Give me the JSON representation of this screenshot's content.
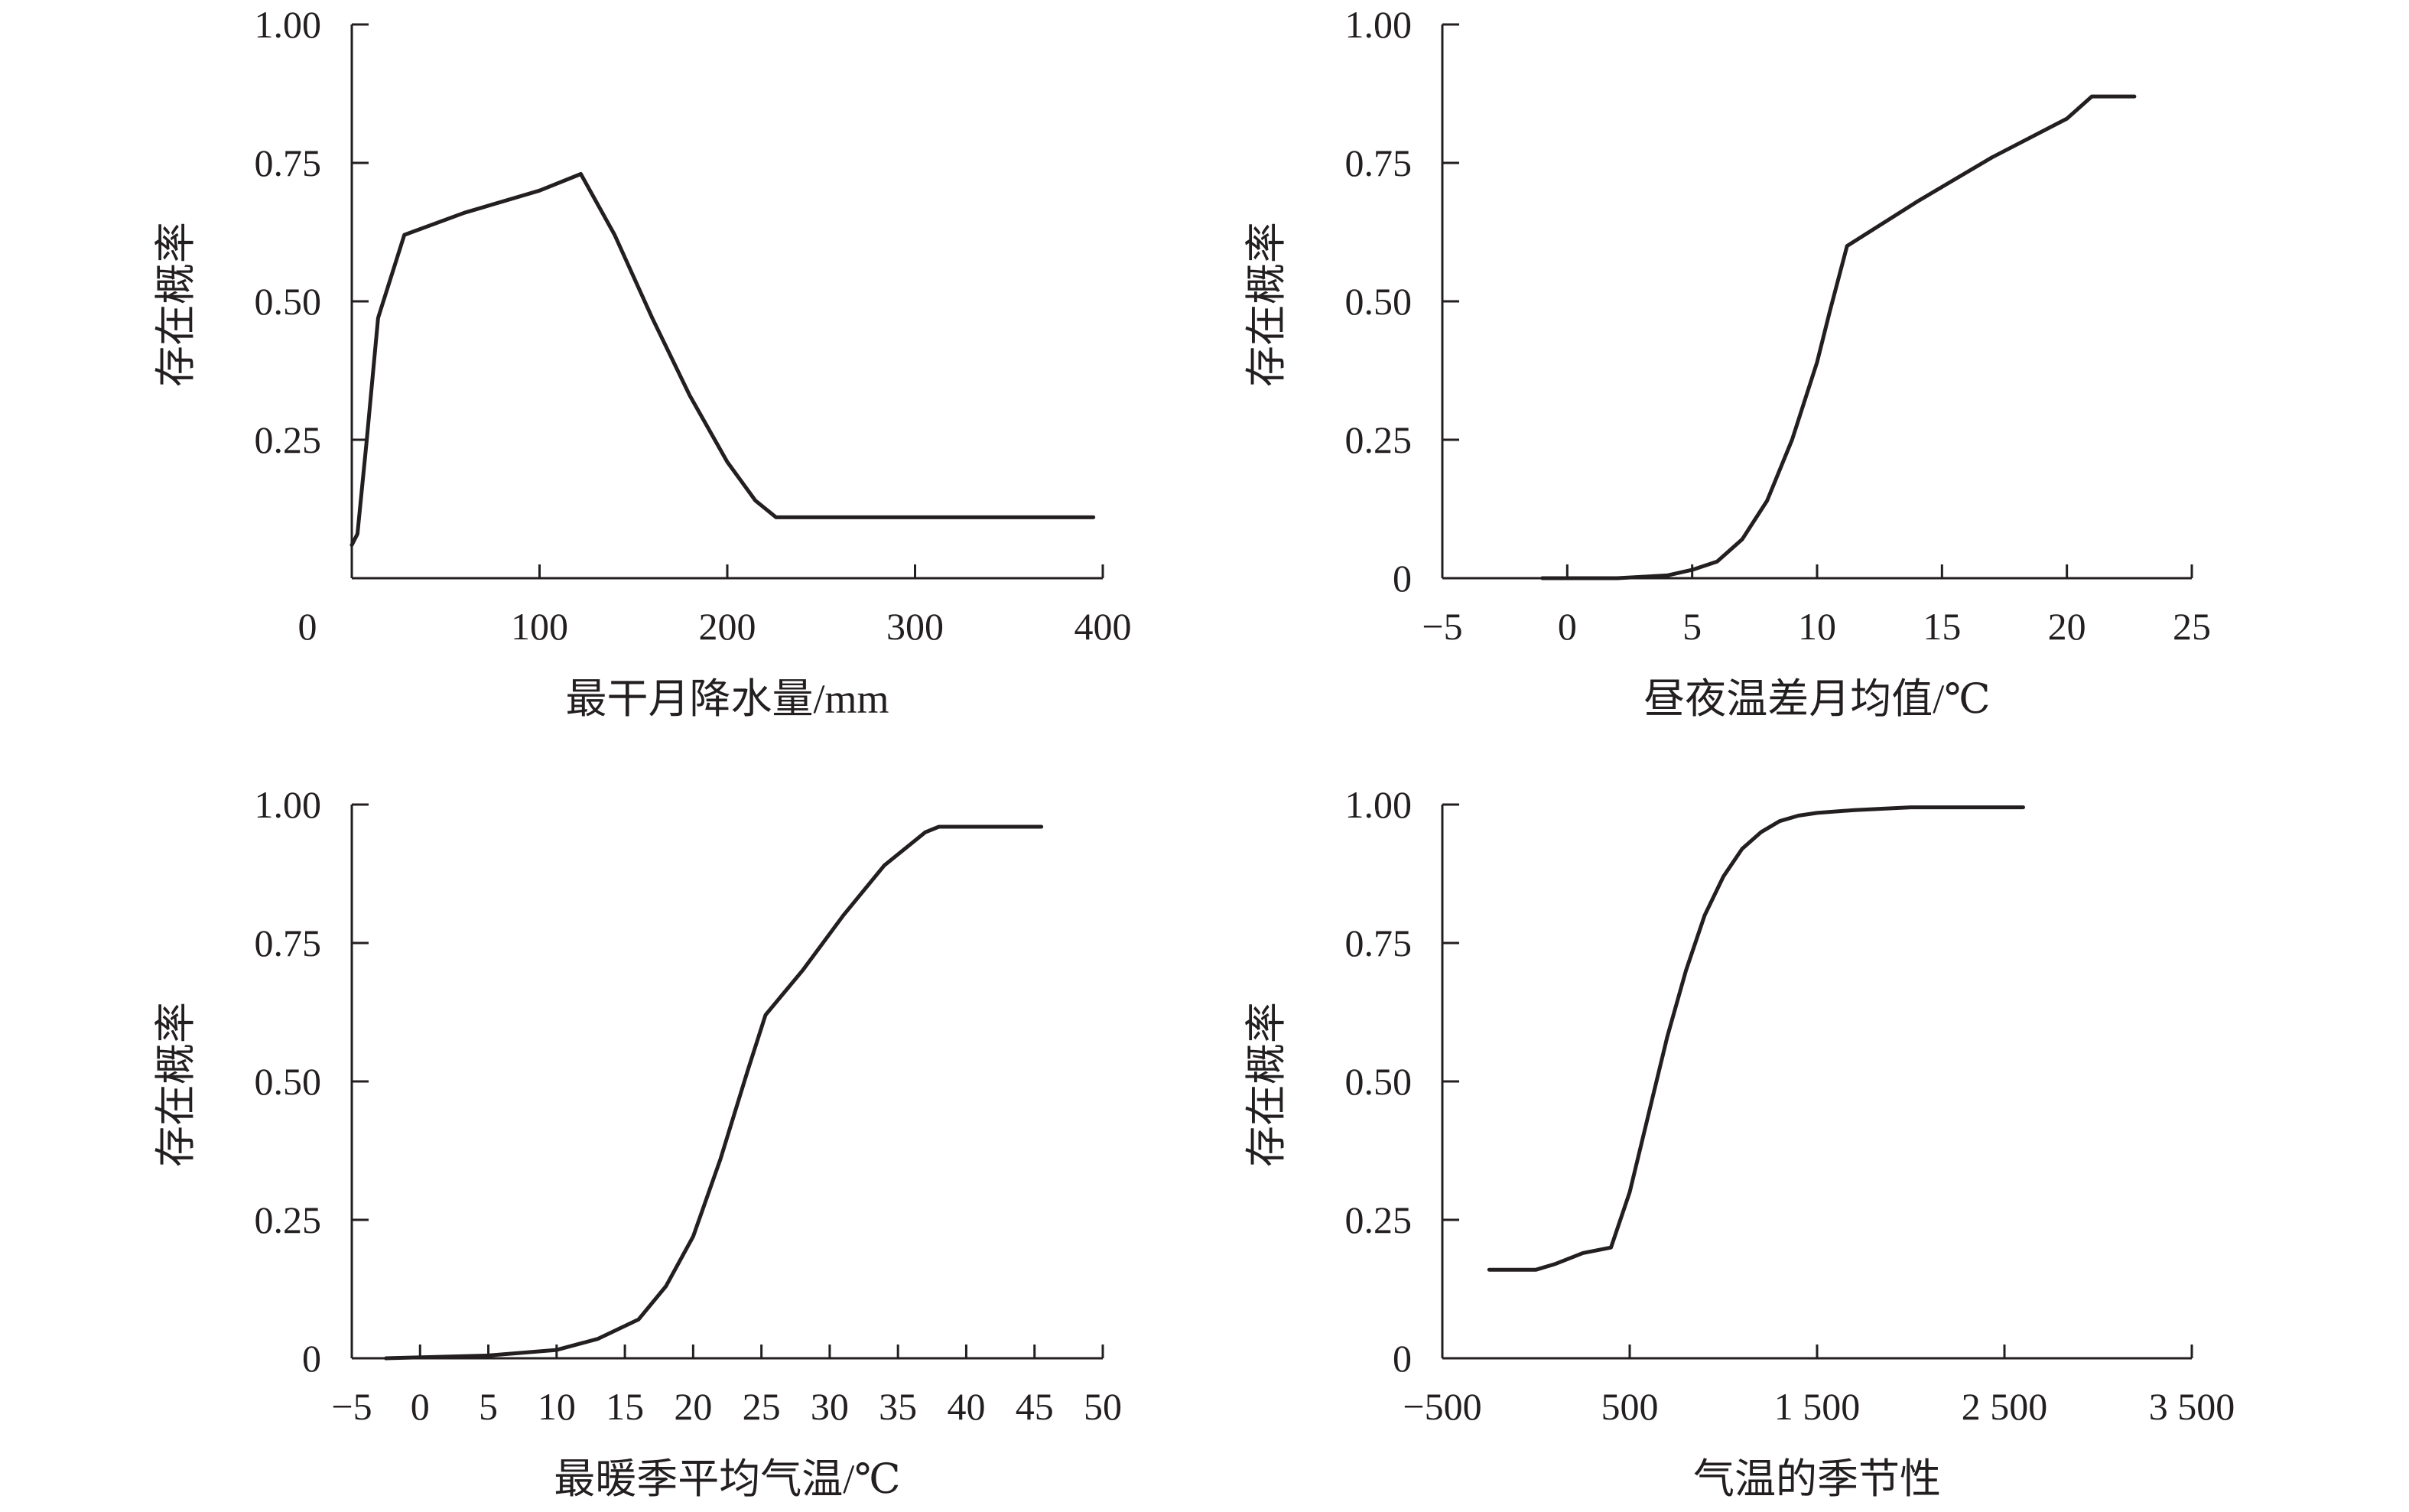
{
  "chart_data": [
    {
      "type": "line",
      "xlabel": "最干月降水量/mm",
      "ylabel": "存在概率",
      "xlim": [
        0,
        400
      ],
      "ylim": [
        0,
        1
      ],
      "xticks": [
        "0",
        "100",
        "200",
        "300",
        "400"
      ],
      "yticks": [
        "1.00",
        "0.75",
        "0.50",
        "0.25",
        ""
      ],
      "grid": false,
      "series": [
        {
          "x": [
            0,
            3,
            8,
            14,
            28,
            60,
            100,
            122,
            140,
            160,
            180,
            200,
            215,
            226,
            300,
            395
          ],
          "y": [
            0.06,
            0.08,
            0.25,
            0.47,
            0.62,
            0.66,
            0.7,
            0.73,
            0.62,
            0.47,
            0.33,
            0.21,
            0.14,
            0.11,
            0.11,
            0.11
          ]
        }
      ]
    },
    {
      "type": "line",
      "xlabel": "昼夜温差月均值/℃",
      "ylabel": "存在概率",
      "xlim": [
        -5,
        25
      ],
      "ylim": [
        0,
        1
      ],
      "xticks": [
        "−5",
        "0",
        "5",
        "10",
        "15",
        "20",
        "25"
      ],
      "yticks": [
        "1.00",
        "0.75",
        "0.50",
        "0.25",
        "0"
      ],
      "grid": false,
      "series": [
        {
          "x": [
            -1,
            2,
            4,
            5,
            6,
            7,
            8,
            9,
            10,
            10.5,
            11.2,
            14,
            17,
            20,
            21,
            22.7
          ],
          "y": [
            0,
            0,
            0.005,
            0.015,
            0.03,
            0.07,
            0.14,
            0.25,
            0.39,
            0.48,
            0.6,
            0.68,
            0.76,
            0.83,
            0.87,
            0.87
          ]
        }
      ]
    },
    {
      "type": "line",
      "xlabel": "最暖季平均气温/℃",
      "ylabel": "存在概率",
      "xlim": [
        -5,
        50
      ],
      "ylim": [
        0,
        1
      ],
      "xticks": [
        "−5",
        "0",
        "5",
        "10",
        "15",
        "20",
        "25",
        "30",
        "35",
        "40",
        "45",
        "50"
      ],
      "yticks": [
        "1.00",
        "0.75",
        "0.50",
        "0.25",
        "0"
      ],
      "grid": false,
      "series": [
        {
          "x": [
            -2.5,
            5,
            10,
            13,
            16,
            18,
            20,
            22,
            24,
            25.3,
            28,
            31,
            34,
            37,
            38,
            45.5
          ],
          "y": [
            0,
            0.005,
            0.015,
            0.035,
            0.07,
            0.13,
            0.22,
            0.36,
            0.52,
            0.62,
            0.7,
            0.8,
            0.89,
            0.95,
            0.96,
            0.96
          ]
        }
      ]
    },
    {
      "type": "line",
      "xlabel": "气温的季节性",
      "ylabel": "存在概率",
      "xlim": [
        -500,
        3500
      ],
      "ylim": [
        0,
        1
      ],
      "xticks": [
        "−500",
        "500",
        "1 500",
        "2 500",
        "3 500"
      ],
      "yticks": [
        "1.00",
        "0.75",
        "0.50",
        "0.25",
        "0"
      ],
      "grid": false,
      "series": [
        {
          "x": [
            -250,
            0,
            100,
            250,
            400,
            500,
            600,
            700,
            800,
            900,
            1000,
            1100,
            1200,
            1300,
            1400,
            1500,
            1700,
            2000,
            2600
          ],
          "y": [
            0.16,
            0.16,
            0.17,
            0.19,
            0.2,
            0.3,
            0.44,
            0.58,
            0.7,
            0.8,
            0.87,
            0.92,
            0.95,
            0.97,
            0.98,
            0.985,
            0.99,
            0.995,
            0.995
          ]
        }
      ]
    }
  ]
}
